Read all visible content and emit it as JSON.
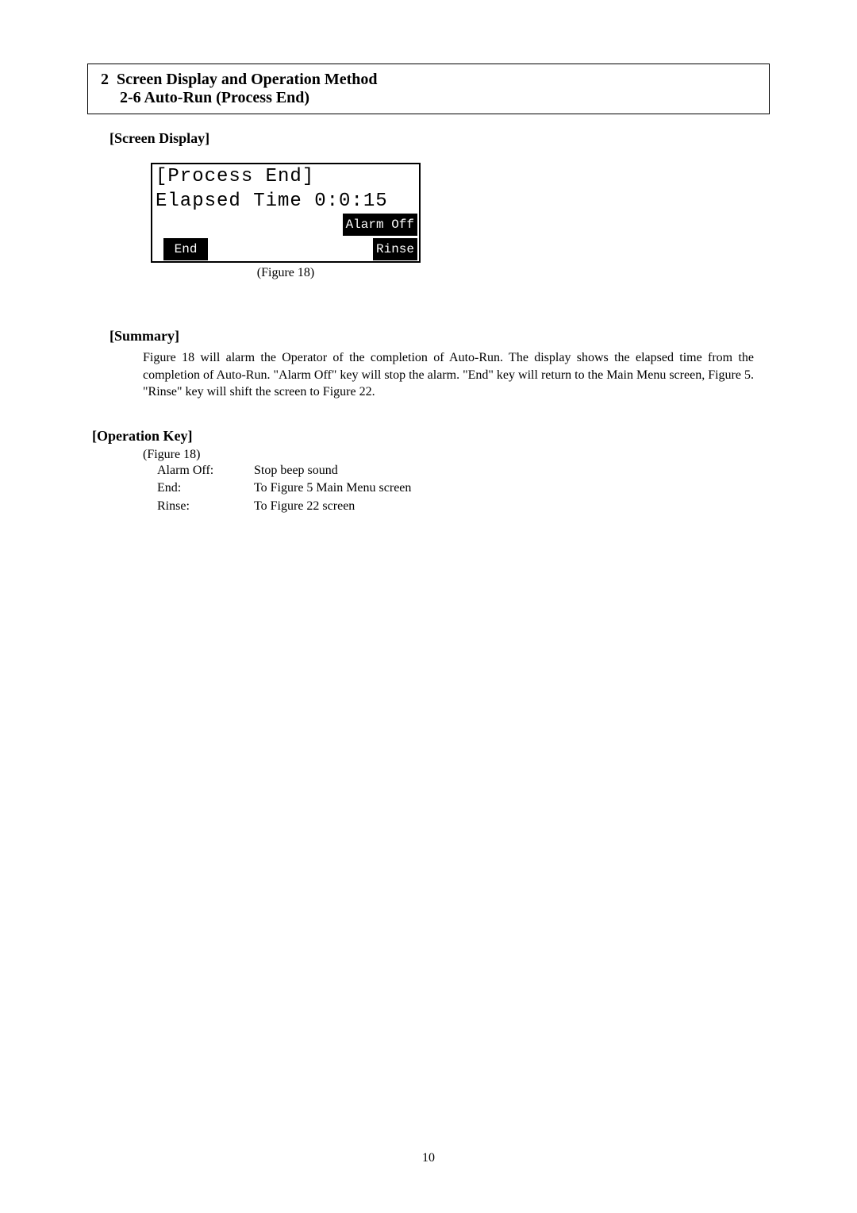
{
  "header": {
    "section_number": "2",
    "section_title": "Screen Display and Operation Method",
    "subsection_title": "2-6 Auto-Run (Process End)"
  },
  "screen_display": {
    "heading": "[Screen Display]",
    "lcd": {
      "line1": "[Process End]",
      "line2": "Elapsed Time 0:0:15",
      "alarm_button": "Alarm Off",
      "end_button": "End",
      "rinse_button": "Rinse"
    },
    "figure_caption": "(Figure 18)"
  },
  "summary": {
    "heading": "[Summary]",
    "text": "Figure 18 will alarm the Operator of the completion of Auto-Run. The display shows the elapsed time from the completion of Auto-Run. \"Alarm Off\" key will stop the alarm. \"End\" key will return to the Main Menu screen, Figure 5. \"Rinse\" key will shift the screen to Figure 22."
  },
  "operation_key": {
    "heading": "[Operation Key]",
    "figure_ref": "(Figure 18)",
    "rows": [
      {
        "label": "Alarm Off:",
        "desc": "Stop beep sound"
      },
      {
        "label": "End:",
        "desc": "To Figure 5 Main Menu screen"
      },
      {
        "label": "Rinse:",
        "desc": "To Figure 22 screen"
      }
    ]
  },
  "page_number": "10"
}
